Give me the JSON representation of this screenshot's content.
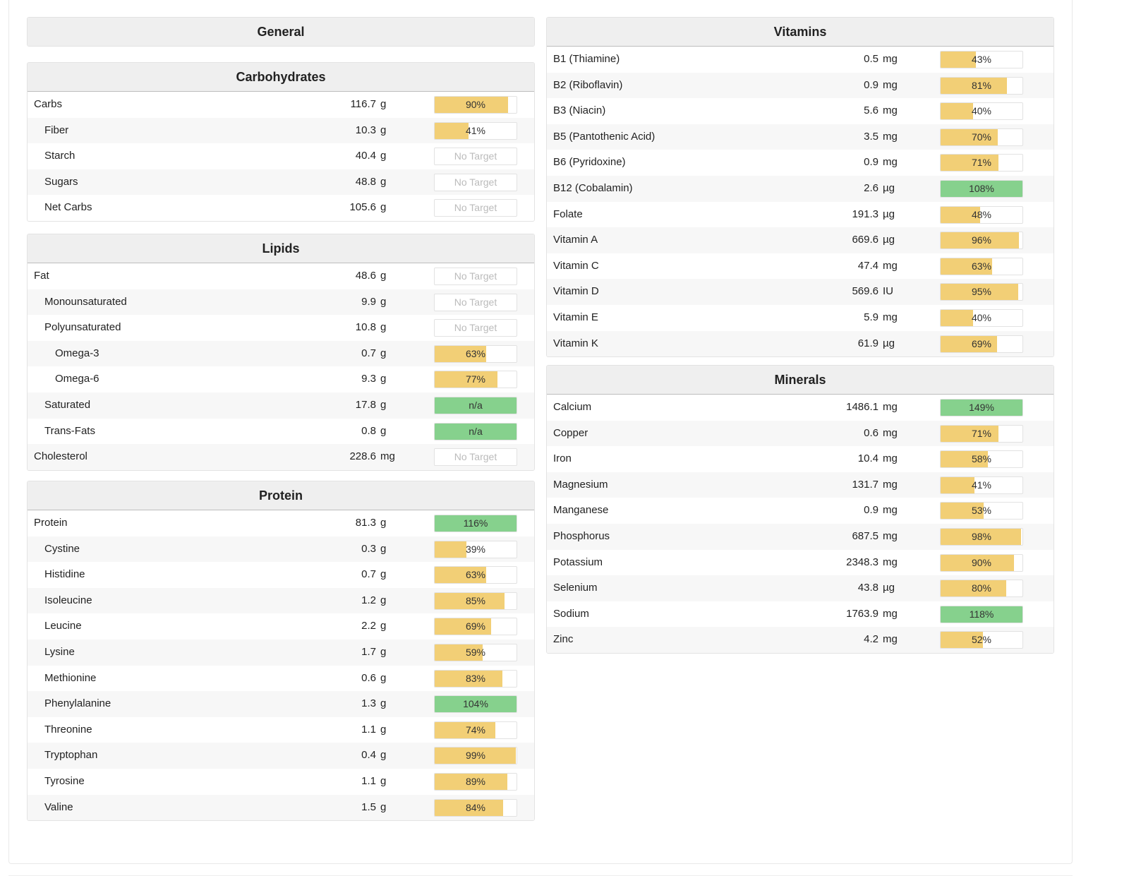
{
  "general": {
    "title": "General"
  },
  "carbohydrates": {
    "title": "Carbohydrates",
    "rows": [
      {
        "name": "Carbs",
        "amount": "116.7",
        "unit": "g",
        "indent": 0,
        "pct": "90%",
        "fill": 90,
        "status": "warn"
      },
      {
        "name": "Fiber",
        "amount": "10.3",
        "unit": "g",
        "indent": 1,
        "pct": "41%",
        "fill": 41,
        "status": "warn"
      },
      {
        "name": "Starch",
        "amount": "40.4",
        "unit": "g",
        "indent": 1,
        "pct": "No Target",
        "fill": 0,
        "status": "none"
      },
      {
        "name": "Sugars",
        "amount": "48.8",
        "unit": "g",
        "indent": 1,
        "pct": "No Target",
        "fill": 0,
        "status": "none"
      },
      {
        "name": "Net Carbs",
        "amount": "105.6",
        "unit": "g",
        "indent": 1,
        "pct": "No Target",
        "fill": 0,
        "status": "none"
      }
    ]
  },
  "lipids": {
    "title": "Lipids",
    "rows": [
      {
        "name": "Fat",
        "amount": "48.6",
        "unit": "g",
        "indent": 0,
        "pct": "No Target",
        "fill": 0,
        "status": "none"
      },
      {
        "name": "Monounsaturated",
        "amount": "9.9",
        "unit": "g",
        "indent": 1,
        "pct": "No Target",
        "fill": 0,
        "status": "none"
      },
      {
        "name": "Polyunsaturated",
        "amount": "10.8",
        "unit": "g",
        "indent": 1,
        "pct": "No Target",
        "fill": 0,
        "status": "none"
      },
      {
        "name": "Omega-3",
        "amount": "0.7",
        "unit": "g",
        "indent": 2,
        "pct": "63%",
        "fill": 63,
        "status": "warn"
      },
      {
        "name": "Omega-6",
        "amount": "9.3",
        "unit": "g",
        "indent": 2,
        "pct": "77%",
        "fill": 77,
        "status": "warn"
      },
      {
        "name": "Saturated",
        "amount": "17.8",
        "unit": "g",
        "indent": 1,
        "pct": "n/a",
        "fill": 100,
        "status": "ok"
      },
      {
        "name": "Trans-Fats",
        "amount": "0.8",
        "unit": "g",
        "indent": 1,
        "pct": "n/a",
        "fill": 100,
        "status": "ok"
      },
      {
        "name": "Cholesterol",
        "amount": "228.6",
        "unit": "mg",
        "indent": 0,
        "pct": "No Target",
        "fill": 0,
        "status": "none"
      }
    ]
  },
  "protein": {
    "title": "Protein",
    "rows": [
      {
        "name": "Protein",
        "amount": "81.3",
        "unit": "g",
        "indent": 0,
        "pct": "116%",
        "fill": 100,
        "status": "ok"
      },
      {
        "name": "Cystine",
        "amount": "0.3",
        "unit": "g",
        "indent": 1,
        "pct": "39%",
        "fill": 39,
        "status": "warn"
      },
      {
        "name": "Histidine",
        "amount": "0.7",
        "unit": "g",
        "indent": 1,
        "pct": "63%",
        "fill": 63,
        "status": "warn"
      },
      {
        "name": "Isoleucine",
        "amount": "1.2",
        "unit": "g",
        "indent": 1,
        "pct": "85%",
        "fill": 85,
        "status": "warn"
      },
      {
        "name": "Leucine",
        "amount": "2.2",
        "unit": "g",
        "indent": 1,
        "pct": "69%",
        "fill": 69,
        "status": "warn"
      },
      {
        "name": "Lysine",
        "amount": "1.7",
        "unit": "g",
        "indent": 1,
        "pct": "59%",
        "fill": 59,
        "status": "warn"
      },
      {
        "name": "Methionine",
        "amount": "0.6",
        "unit": "g",
        "indent": 1,
        "pct": "83%",
        "fill": 83,
        "status": "warn"
      },
      {
        "name": "Phenylalanine",
        "amount": "1.3",
        "unit": "g",
        "indent": 1,
        "pct": "104%",
        "fill": 100,
        "status": "ok"
      },
      {
        "name": "Threonine",
        "amount": "1.1",
        "unit": "g",
        "indent": 1,
        "pct": "74%",
        "fill": 74,
        "status": "warn"
      },
      {
        "name": "Tryptophan",
        "amount": "0.4",
        "unit": "g",
        "indent": 1,
        "pct": "99%",
        "fill": 99,
        "status": "warn"
      },
      {
        "name": "Tyrosine",
        "amount": "1.1",
        "unit": "g",
        "indent": 1,
        "pct": "89%",
        "fill": 89,
        "status": "warn"
      },
      {
        "name": "Valine",
        "amount": "1.5",
        "unit": "g",
        "indent": 1,
        "pct": "84%",
        "fill": 84,
        "status": "warn"
      }
    ]
  },
  "vitamins": {
    "title": "Vitamins",
    "rows": [
      {
        "name": "B1 (Thiamine)",
        "amount": "0.5",
        "unit": "mg",
        "indent": 0,
        "pct": "43%",
        "fill": 43,
        "status": "warn"
      },
      {
        "name": "B2 (Riboflavin)",
        "amount": "0.9",
        "unit": "mg",
        "indent": 0,
        "pct": "81%",
        "fill": 81,
        "status": "warn"
      },
      {
        "name": "B3 (Niacin)",
        "amount": "5.6",
        "unit": "mg",
        "indent": 0,
        "pct": "40%",
        "fill": 40,
        "status": "warn"
      },
      {
        "name": "B5 (Pantothenic Acid)",
        "amount": "3.5",
        "unit": "mg",
        "indent": 0,
        "pct": "70%",
        "fill": 70,
        "status": "warn"
      },
      {
        "name": "B6 (Pyridoxine)",
        "amount": "0.9",
        "unit": "mg",
        "indent": 0,
        "pct": "71%",
        "fill": 71,
        "status": "warn"
      },
      {
        "name": "B12 (Cobalamin)",
        "amount": "2.6",
        "unit": "µg",
        "indent": 0,
        "pct": "108%",
        "fill": 100,
        "status": "ok"
      },
      {
        "name": "Folate",
        "amount": "191.3",
        "unit": "µg",
        "indent": 0,
        "pct": "48%",
        "fill": 48,
        "status": "warn"
      },
      {
        "name": "Vitamin A",
        "amount": "669.6",
        "unit": "µg",
        "indent": 0,
        "pct": "96%",
        "fill": 96,
        "status": "warn"
      },
      {
        "name": "Vitamin C",
        "amount": "47.4",
        "unit": "mg",
        "indent": 0,
        "pct": "63%",
        "fill": 63,
        "status": "warn"
      },
      {
        "name": "Vitamin D",
        "amount": "569.6",
        "unit": "IU",
        "indent": 0,
        "pct": "95%",
        "fill": 95,
        "status": "warn"
      },
      {
        "name": "Vitamin E",
        "amount": "5.9",
        "unit": "mg",
        "indent": 0,
        "pct": "40%",
        "fill": 40,
        "status": "warn"
      },
      {
        "name": "Vitamin K",
        "amount": "61.9",
        "unit": "µg",
        "indent": 0,
        "pct": "69%",
        "fill": 69,
        "status": "warn"
      }
    ]
  },
  "minerals": {
    "title": "Minerals",
    "rows": [
      {
        "name": "Calcium",
        "amount": "1486.1",
        "unit": "mg",
        "indent": 0,
        "pct": "149%",
        "fill": 100,
        "status": "ok"
      },
      {
        "name": "Copper",
        "amount": "0.6",
        "unit": "mg",
        "indent": 0,
        "pct": "71%",
        "fill": 71,
        "status": "warn"
      },
      {
        "name": "Iron",
        "amount": "10.4",
        "unit": "mg",
        "indent": 0,
        "pct": "58%",
        "fill": 58,
        "status": "warn"
      },
      {
        "name": "Magnesium",
        "amount": "131.7",
        "unit": "mg",
        "indent": 0,
        "pct": "41%",
        "fill": 41,
        "status": "warn"
      },
      {
        "name": "Manganese",
        "amount": "0.9",
        "unit": "mg",
        "indent": 0,
        "pct": "53%",
        "fill": 53,
        "status": "warn"
      },
      {
        "name": "Phosphorus",
        "amount": "687.5",
        "unit": "mg",
        "indent": 0,
        "pct": "98%",
        "fill": 98,
        "status": "warn"
      },
      {
        "name": "Potassium",
        "amount": "2348.3",
        "unit": "mg",
        "indent": 0,
        "pct": "90%",
        "fill": 90,
        "status": "warn"
      },
      {
        "name": "Selenium",
        "amount": "43.8",
        "unit": "µg",
        "indent": 0,
        "pct": "80%",
        "fill": 80,
        "status": "warn"
      },
      {
        "name": "Sodium",
        "amount": "1763.9",
        "unit": "mg",
        "indent": 0,
        "pct": "118%",
        "fill": 100,
        "status": "ok"
      },
      {
        "name": "Zinc",
        "amount": "4.2",
        "unit": "mg",
        "indent": 0,
        "pct": "52%",
        "fill": 52,
        "status": "warn"
      }
    ]
  },
  "colors": {
    "warn": "#f2cf76",
    "ok": "#86d18d",
    "header_bg": "#efefef"
  }
}
